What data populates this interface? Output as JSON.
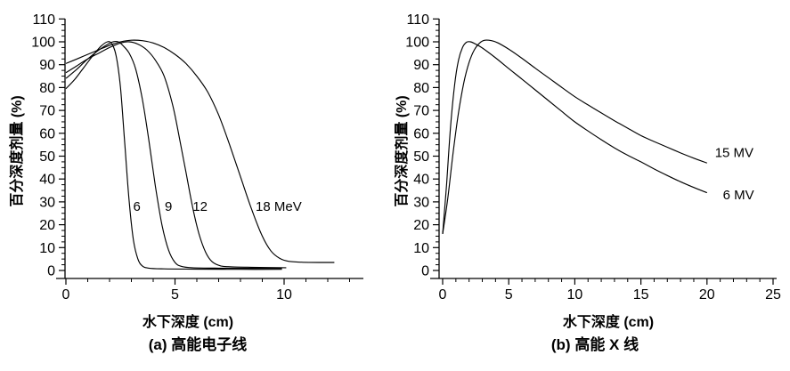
{
  "figure": {
    "background": "#ffffff",
    "line_color": "#000000",
    "text_color": "#000000"
  },
  "chart_data": [
    {
      "id": "a",
      "type": "line",
      "caption": "(a)  高能电子线",
      "xlabel": "水下深度 (cm)",
      "ylabel": "百分深度剂量 (%)",
      "xlim": [
        0,
        13.6
      ],
      "ylim": [
        0,
        110
      ],
      "x_major_ticks": [
        0,
        5,
        10
      ],
      "x_minor_step": 1,
      "x_minor_max": 13,
      "y_major_ticks": [
        0,
        10,
        20,
        30,
        40,
        50,
        60,
        70,
        80,
        90,
        100,
        110
      ],
      "y_minor_step": 2.5,
      "grid": false,
      "legend_position": "inline-annotations",
      "series": [
        {
          "name": "6 MeV",
          "points": [
            [
              0,
              79.5
            ],
            [
              0.4,
              83.5
            ],
            [
              0.8,
              88.5
            ],
            [
              1.2,
              93.5
            ],
            [
              1.6,
              98
            ],
            [
              1.9,
              100
            ],
            [
              2.1,
              99.2
            ],
            [
              2.3,
              94
            ],
            [
              2.5,
              80
            ],
            [
              2.7,
              55
            ],
            [
              2.9,
              30
            ],
            [
              3.1,
              13
            ],
            [
              3.3,
              5
            ],
            [
              3.5,
              2
            ],
            [
              3.8,
              1
            ],
            [
              4.5,
              0.7
            ],
            [
              6,
              0.6
            ],
            [
              8,
              0.5
            ],
            [
              9.9,
              0.5
            ]
          ]
        },
        {
          "name": "9 MeV",
          "points": [
            [
              0,
              84
            ],
            [
              0.5,
              88
            ],
            [
              1.0,
              92.5
            ],
            [
              1.6,
              97
            ],
            [
              2.1,
              99.8
            ],
            [
              2.4,
              100
            ],
            [
              2.6,
              98.5
            ],
            [
              2.9,
              95
            ],
            [
              3.2,
              88
            ],
            [
              3.5,
              75
            ],
            [
              3.8,
              57
            ],
            [
              4.1,
              37
            ],
            [
              4.4,
              20
            ],
            [
              4.7,
              9
            ],
            [
              5.0,
              3.5
            ],
            [
              5.3,
              1.8
            ],
            [
              5.8,
              1.2
            ],
            [
              7,
              1
            ],
            [
              9.9,
              0.9
            ]
          ]
        },
        {
          "name": "12 MeV",
          "points": [
            [
              0,
              86.5
            ],
            [
              0.5,
              89.5
            ],
            [
              1,
              92.5
            ],
            [
              1.5,
              95
            ],
            [
              2,
              97.5
            ],
            [
              2.5,
              99.5
            ],
            [
              2.9,
              100
            ],
            [
              3.3,
              99
            ],
            [
              3.7,
              96.5
            ],
            [
              4.1,
              92
            ],
            [
              4.5,
              85
            ],
            [
              4.9,
              72
            ],
            [
              5.2,
              58
            ],
            [
              5.5,
              43
            ],
            [
              5.8,
              28
            ],
            [
              6.1,
              16
            ],
            [
              6.4,
              8
            ],
            [
              6.7,
              3.8
            ],
            [
              7.1,
              2
            ],
            [
              7.6,
              1.6
            ],
            [
              8.5,
              1.4
            ],
            [
              10.1,
              1.2
            ]
          ]
        },
        {
          "name": "18 MeV",
          "points": [
            [
              0,
              90.5
            ],
            [
              0.5,
              92.5
            ],
            [
              1,
              94.5
            ],
            [
              1.5,
              96.5
            ],
            [
              2,
              98.5
            ],
            [
              2.5,
              100
            ],
            [
              3,
              100.7
            ],
            [
              3.5,
              100.5
            ],
            [
              4,
              99.5
            ],
            [
              4.5,
              97.5
            ],
            [
              5,
              94.5
            ],
            [
              5.5,
              90.5
            ],
            [
              6,
              85
            ],
            [
              6.5,
              78
            ],
            [
              7,
              68
            ],
            [
              7.5,
              55
            ],
            [
              8,
              41
            ],
            [
              8.5,
              27
            ],
            [
              9,
              15
            ],
            [
              9.4,
              8.5
            ],
            [
              9.8,
              5.3
            ],
            [
              10.2,
              4
            ],
            [
              10.8,
              3.6
            ],
            [
              11.6,
              3.5
            ],
            [
              12.3,
              3.5
            ]
          ]
        }
      ],
      "annotations": [
        {
          "text": "6",
          "x": 3.25,
          "y": 28,
          "anchor": "middle"
        },
        {
          "text": "9",
          "x": 4.7,
          "y": 28,
          "anchor": "middle"
        },
        {
          "text": "12",
          "x": 6.15,
          "y": 28,
          "anchor": "middle"
        },
        {
          "text": "18  MeV",
          "x": 9.75,
          "y": 28,
          "anchor": "middle"
        }
      ]
    },
    {
      "id": "b",
      "type": "line",
      "caption": "(b)  高能 X 线",
      "xlabel": "水下深度 (cm)",
      "ylabel": "百分深度剂量 (%)",
      "xlim": [
        0,
        25
      ],
      "ylim": [
        0,
        110
      ],
      "x_major_ticks": [
        0,
        5,
        10,
        15,
        20,
        25
      ],
      "x_minor_step": 1,
      "x_minor_max": 24,
      "y_major_ticks": [
        0,
        10,
        20,
        30,
        40,
        50,
        60,
        70,
        80,
        90,
        100,
        110
      ],
      "y_minor_step": 2.5,
      "grid": false,
      "legend_position": "inline-annotations",
      "series": [
        {
          "name": "6 MV",
          "points": [
            [
              0,
              16
            ],
            [
              0.3,
              38
            ],
            [
              0.6,
              63
            ],
            [
              0.9,
              81
            ],
            [
              1.2,
              92
            ],
            [
              1.5,
              97.5
            ],
            [
              1.8,
              99.8
            ],
            [
              2.1,
              100
            ],
            [
              2.5,
              99
            ],
            [
              3,
              97.3
            ],
            [
              4,
              93
            ],
            [
              5,
              88.3
            ],
            [
              6,
              83.7
            ],
            [
              7,
              79
            ],
            [
              8,
              74.3
            ],
            [
              9,
              69.6
            ],
            [
              10,
              65
            ],
            [
              11,
              61
            ],
            [
              12,
              57.2
            ],
            [
              13,
              53.6
            ],
            [
              14,
              50.4
            ],
            [
              15,
              47.5
            ],
            [
              16,
              44.4
            ],
            [
              17,
              41.5
            ],
            [
              18,
              38.8
            ],
            [
              19,
              36.3
            ],
            [
              20,
              34
            ]
          ]
        },
        {
          "name": "15 MV",
          "points": [
            [
              0,
              16
            ],
            [
              0.4,
              32
            ],
            [
              0.8,
              52
            ],
            [
              1.2,
              69
            ],
            [
              1.6,
              82
            ],
            [
              2.0,
              91
            ],
            [
              2.4,
              96.5
            ],
            [
              2.8,
              99.5
            ],
            [
              3.2,
              100.7
            ],
            [
              3.7,
              100.5
            ],
            [
              4.2,
              99.5
            ],
            [
              5,
              96.8
            ],
            [
              6,
              92.8
            ],
            [
              7,
              88.5
            ],
            [
              8,
              84.3
            ],
            [
              9,
              80.1
            ],
            [
              10,
              76
            ],
            [
              11,
              72.4
            ],
            [
              12,
              68.9
            ],
            [
              13,
              65.5
            ],
            [
              14,
              62.2
            ],
            [
              15,
              59
            ],
            [
              16,
              56.4
            ],
            [
              17,
              53.9
            ],
            [
              18,
              51.4
            ],
            [
              19,
              49.1
            ],
            [
              20,
              47
            ]
          ]
        }
      ],
      "annotations": [
        {
          "text": "15 MV",
          "x": 20.6,
          "y": 51.5,
          "anchor": "start"
        },
        {
          "text": "6 MV",
          "x": 21.2,
          "y": 33,
          "anchor": "start"
        }
      ]
    }
  ]
}
